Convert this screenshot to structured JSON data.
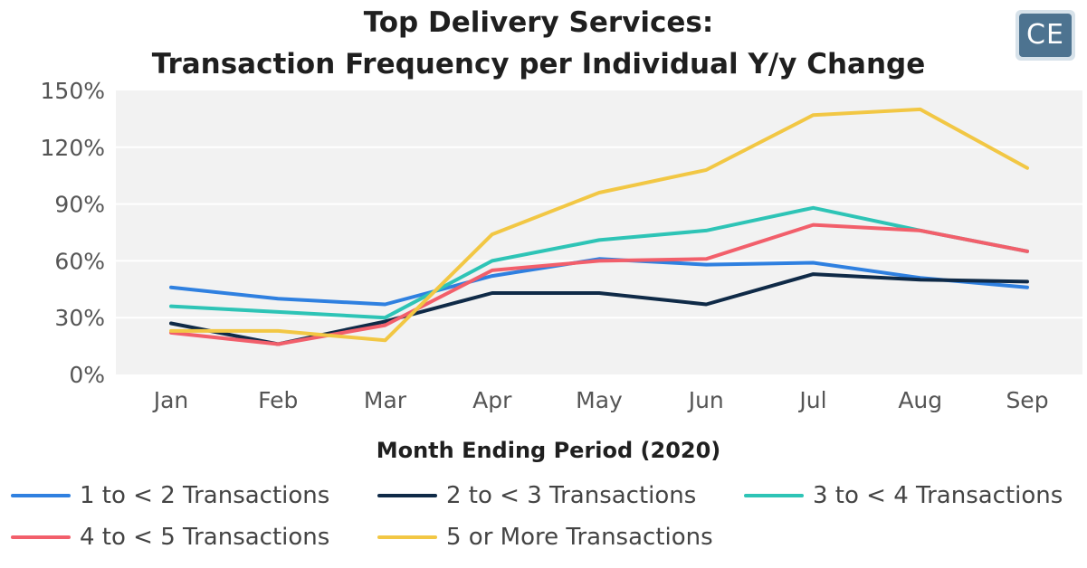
{
  "title_line1": "Top Delivery Services:",
  "title_line2": "Transaction Frequency per Individual Y/y Change",
  "logo_text": "CE",
  "colors": {
    "plot_background": "#f2f2f2",
    "gridline": "#ffffff"
  },
  "chart_data": {
    "type": "line",
    "title": "Top Delivery Services: Transaction Frequency per Individual Y/y Change",
    "xlabel": "Month Ending Period (2020)",
    "ylabel": "",
    "categories": [
      "Jan",
      "Feb",
      "Mar",
      "Apr",
      "May",
      "Jun",
      "Jul",
      "Aug",
      "Sep"
    ],
    "y_ticks": [
      0,
      30,
      60,
      90,
      120,
      150
    ],
    "y_tick_labels": [
      "0%",
      "30%",
      "60%",
      "90%",
      "120%",
      "150%"
    ],
    "ylim": [
      0,
      150
    ],
    "y_unit": "%",
    "grid": true,
    "legend_position": "bottom",
    "series": [
      {
        "name": "1 to < 2 Transactions",
        "color": "#2f80e0",
        "values": [
          46,
          40,
          37,
          52,
          61,
          58,
          59,
          51,
          46
        ]
      },
      {
        "name": "2 to < 3 Transactions",
        "color": "#0f2a47",
        "values": [
          27,
          16,
          28,
          43,
          43,
          37,
          53,
          50,
          49
        ]
      },
      {
        "name": "3 to < 4 Transactions",
        "color": "#2ec4b6",
        "values": [
          36,
          33,
          30,
          60,
          71,
          76,
          88,
          76,
          65
        ]
      },
      {
        "name": "4 to < 5 Transactions",
        "color": "#f25f6b",
        "values": [
          22,
          16,
          26,
          55,
          60,
          61,
          79,
          76,
          65
        ]
      },
      {
        "name": "5 or More Transactions",
        "color": "#f2c744",
        "values": [
          23,
          23,
          18,
          74,
          96,
          108,
          137,
          140,
          109
        ]
      }
    ]
  }
}
